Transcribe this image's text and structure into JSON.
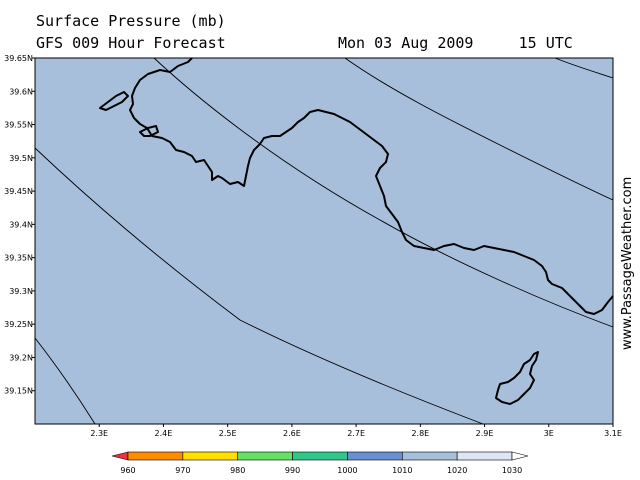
{
  "header": {
    "title": "Surface Pressure (mb)",
    "model": "GFS 009 Hour Forecast",
    "datetime": "Mon 03 Aug 2009     15 UTC"
  },
  "watermark": "www.PassageWeather.com",
  "map": {
    "lon_range": [
      2.2,
      3.1
    ],
    "lat_range": [
      39.1,
      39.65
    ],
    "ocean_color": "#a8bfdc",
    "lat_ticks": [
      {
        "value": 39.65,
        "label": "39.65N"
      },
      {
        "value": 39.6,
        "label": "39.6N"
      },
      {
        "value": 39.55,
        "label": "39.55N"
      },
      {
        "value": 39.5,
        "label": "39.5N"
      },
      {
        "value": 39.45,
        "label": "39.45N"
      },
      {
        "value": 39.4,
        "label": "39.4N"
      },
      {
        "value": 39.35,
        "label": "39.35N"
      },
      {
        "value": 39.3,
        "label": "39.3N"
      },
      {
        "value": 39.25,
        "label": "39.25N"
      },
      {
        "value": 39.2,
        "label": "39.2N"
      },
      {
        "value": 39.15,
        "label": "39.15N"
      }
    ],
    "lon_ticks": [
      {
        "value": 2.3,
        "label": "2.3E"
      },
      {
        "value": 2.4,
        "label": "2.4E"
      },
      {
        "value": 2.5,
        "label": "2.5E"
      },
      {
        "value": 2.6,
        "label": "2.6E"
      },
      {
        "value": 2.7,
        "label": "2.7E"
      },
      {
        "value": 2.8,
        "label": "2.8E"
      },
      {
        "value": 2.9,
        "label": "2.9E"
      },
      {
        "value": 3.0,
        "label": "3E"
      },
      {
        "value": 3.1,
        "label": "3.1E"
      }
    ]
  },
  "legend": {
    "labels": [
      "960",
      "970",
      "980",
      "990",
      "1000",
      "1010",
      "1020",
      "1030"
    ],
    "colors": [
      "#e8323c",
      "#ff8c00",
      "#ffe000",
      "#66e066",
      "#2fc88a",
      "#6a8fd0",
      "#a8bfdc",
      "#dde6f2",
      "#ffffff"
    ]
  }
}
